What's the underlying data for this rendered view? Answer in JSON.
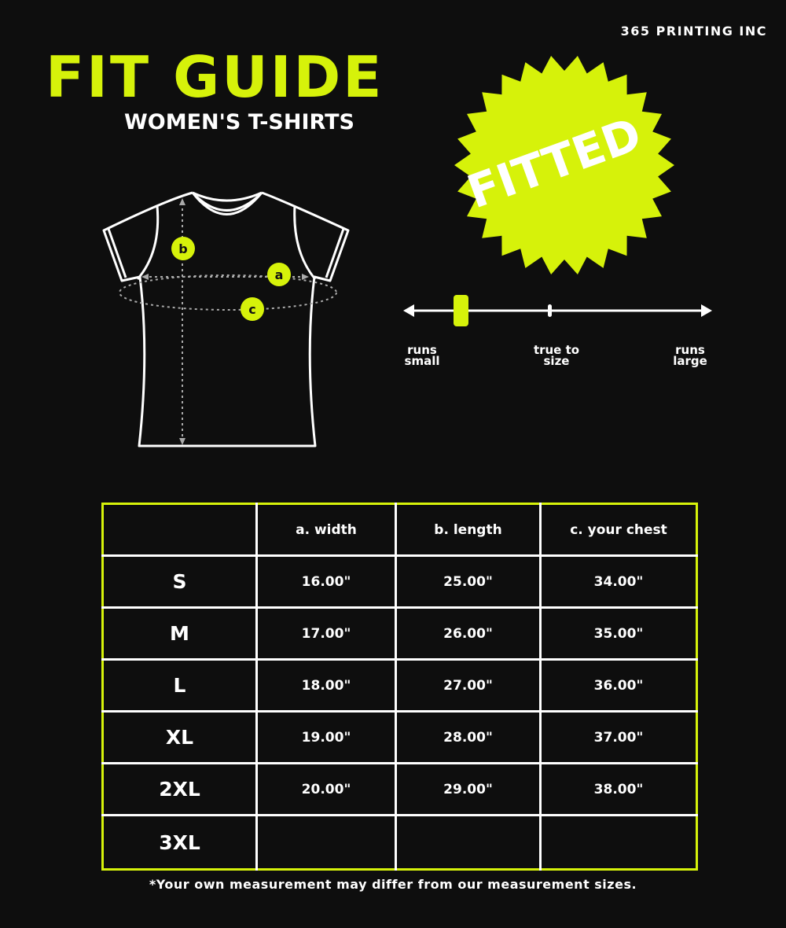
{
  "brand": "365 PRINTING INC",
  "title": "FIT GUIDE",
  "subtitle": "WOMEN'S T-SHIRTS",
  "badge": {
    "label": "FITTED",
    "color": "#d6f20a"
  },
  "diagram_labels": {
    "a": "a",
    "b": "b",
    "c": "c"
  },
  "fit_scale": {
    "labels": [
      "runs small",
      "true to size",
      "runs large"
    ],
    "position": "runs small"
  },
  "table": {
    "headers": [
      "",
      "a. width",
      "b. length",
      "c. your chest"
    ],
    "rows": [
      {
        "size": "S",
        "width": "16.00\"",
        "length": "25.00\"",
        "chest": "34.00\""
      },
      {
        "size": "M",
        "width": "17.00\"",
        "length": "26.00\"",
        "chest": "35.00\""
      },
      {
        "size": "L",
        "width": "18.00\"",
        "length": "27.00\"",
        "chest": "36.00\""
      },
      {
        "size": "XL",
        "width": "19.00\"",
        "length": "28.00\"",
        "chest": "37.00\""
      },
      {
        "size": "2XL",
        "width": "20.00\"",
        "length": "29.00\"",
        "chest": "38.00\""
      },
      {
        "size": "3XL",
        "width": "",
        "length": "",
        "chest": ""
      }
    ]
  },
  "footnote": "*Your own measurement may differ from our measurement sizes.",
  "colors": {
    "accent": "#d6f20a",
    "background": "#0e0e0e",
    "text": "#ffffff"
  }
}
